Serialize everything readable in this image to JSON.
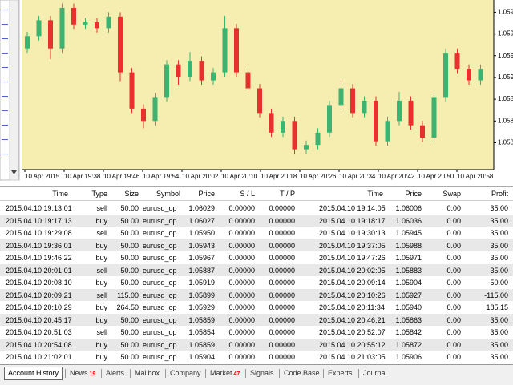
{
  "chart": {
    "type": "candlestick",
    "up_color": "#3cb371",
    "down_color": "#e8312f",
    "background": "#f5eeb0",
    "ylim": [
      1.05773,
      1.06007
    ],
    "yticks": [
      {
        "value": 1.0599,
        "label": "1.059"
      },
      {
        "value": 1.0596,
        "label": "1.059"
      },
      {
        "value": 1.0593,
        "label": "1.059"
      },
      {
        "value": 1.059,
        "label": "1.059"
      },
      {
        "value": 1.0587,
        "label": "1.058"
      },
      {
        "value": 1.0584,
        "label": "1.058"
      },
      {
        "value": 1.0581,
        "label": "1.058"
      }
    ],
    "time_labels": [
      "10 Apr 2015",
      "10 Apr 19:38",
      "10 Apr 19:46",
      "10 Apr 19:54",
      "10 Apr 20:02",
      "10 Apr 20:10",
      "10 Apr 20:18",
      "10 Apr 20:26",
      "10 Apr 20:34",
      "10 Apr 20:42",
      "10 Apr 20:50",
      "10 Apr 20:58"
    ],
    "open": [
      1.0594,
      1.05957,
      1.05979,
      1.0594,
      1.05996,
      1.05973,
      1.05976,
      1.05968,
      1.05984,
      1.05907,
      1.05857,
      1.0584,
      1.05873,
      1.05918,
      1.05901,
      1.05923,
      1.05896,
      1.05907,
      1.05968,
      1.05907,
      1.05885,
      1.05851,
      1.05824,
      1.0584,
      1.05801,
      1.05807,
      1.05824,
      1.05862,
      1.05885,
      1.05851,
      1.05868,
      1.05812,
      1.0584,
      1.05868,
      1.05834,
      1.05817,
      1.05873,
      1.05934,
      1.05912,
      1.05896
    ],
    "high": [
      1.05963,
      1.05985,
      1.05985,
      1.06002,
      1.06002,
      1.05982,
      1.05982,
      1.0599,
      1.0599,
      1.05913,
      1.05863,
      1.05879,
      1.05924,
      1.05924,
      1.05935,
      1.05929,
      1.05913,
      1.05985,
      1.05974,
      1.05913,
      1.05891,
      1.05857,
      1.05846,
      1.05846,
      1.05813,
      1.0583,
      1.05868,
      1.05896,
      1.05891,
      1.05874,
      1.05874,
      1.05846,
      1.0588,
      1.05874,
      1.0584,
      1.05879,
      1.0594,
      1.0594,
      1.05918,
      1.05918
    ],
    "low": [
      1.05934,
      1.05951,
      1.05925,
      1.05934,
      1.05967,
      1.05967,
      1.05962,
      1.05962,
      1.05895,
      1.05851,
      1.0583,
      1.05834,
      1.05867,
      1.0589,
      1.05895,
      1.0589,
      1.0589,
      1.05901,
      1.05901,
      1.05879,
      1.05845,
      1.05818,
      1.05818,
      1.05795,
      1.05795,
      1.05801,
      1.05818,
      1.05856,
      1.05845,
      1.05845,
      1.05806,
      1.05806,
      1.05834,
      1.05828,
      1.05811,
      1.05811,
      1.05867,
      1.05906,
      1.0589,
      1.0589
    ],
    "close": [
      1.05957,
      1.05979,
      1.0594,
      1.05996,
      1.05973,
      1.05976,
      1.05968,
      1.05984,
      1.05907,
      1.05857,
      1.0584,
      1.05873,
      1.05918,
      1.05901,
      1.05923,
      1.05896,
      1.05907,
      1.05968,
      1.05907,
      1.05885,
      1.05851,
      1.05824,
      1.0584,
      1.05801,
      1.05807,
      1.05824,
      1.05862,
      1.05885,
      1.05851,
      1.05868,
      1.05812,
      1.0584,
      1.05868,
      1.05834,
      1.05817,
      1.05873,
      1.05934,
      1.05912,
      1.05896,
      1.05912
    ]
  },
  "table": {
    "columns": [
      "Time",
      "Type",
      "Size",
      "Symbol",
      "Price",
      "S / L",
      "T / P",
      "Time",
      "Price",
      "Swap",
      "Profit"
    ],
    "rows": [
      [
        "2015.04.10 19:13:01",
        "sell",
        "50.00",
        "eurusd_op",
        "1.06029",
        "0.00000",
        "0.00000",
        "2015.04.10 19:14:05",
        "1.06006",
        "0.00",
        "35.00"
      ],
      [
        "2015.04.10 19:17:13",
        "buy",
        "50.00",
        "eurusd_op",
        "1.06027",
        "0.00000",
        "0.00000",
        "2015.04.10 19:18:17",
        "1.06036",
        "0.00",
        "35.00"
      ],
      [
        "2015.04.10 19:29:08",
        "sell",
        "50.00",
        "eurusd_op",
        "1.05950",
        "0.00000",
        "0.00000",
        "2015.04.10 19:30:13",
        "1.05945",
        "0.00",
        "35.00"
      ],
      [
        "2015.04.10 19:36:01",
        "buy",
        "50.00",
        "eurusd_op",
        "1.05943",
        "0.00000",
        "0.00000",
        "2015.04.10 19:37:05",
        "1.05988",
        "0.00",
        "35.00"
      ],
      [
        "2015.04.10 19:46:22",
        "buy",
        "50.00",
        "eurusd_op",
        "1.05967",
        "0.00000",
        "0.00000",
        "2015.04.10 19:47:26",
        "1.05971",
        "0.00",
        "35.00"
      ],
      [
        "2015.04.10 20:01:01",
        "sell",
        "50.00",
        "eurusd_op",
        "1.05887",
        "0.00000",
        "0.00000",
        "2015.04.10 20:02:05",
        "1.05883",
        "0.00",
        "35.00"
      ],
      [
        "2015.04.10 20:08:10",
        "buy",
        "50.00",
        "eurusd_op",
        "1.05919",
        "0.00000",
        "0.00000",
        "2015.04.10 20:09:14",
        "1.05904",
        "0.00",
        "-50.00"
      ],
      [
        "2015.04.10 20:09:21",
        "sell",
        "115.00",
        "eurusd_op",
        "1.05899",
        "0.00000",
        "0.00000",
        "2015.04.10 20:10:26",
        "1.05927",
        "0.00",
        "-115.00"
      ],
      [
        "2015.04.10 20:10:29",
        "buy",
        "264.50",
        "eurusd_op",
        "1.05929",
        "0.00000",
        "0.00000",
        "2015.04.10 20:11:34",
        "1.05940",
        "0.00",
        "185.15"
      ],
      [
        "2015.04.10 20:45:17",
        "buy",
        "50.00",
        "eurusd_op",
        "1.05859",
        "0.00000",
        "0.00000",
        "2015.04.10 20:46:21",
        "1.05863",
        "0.00",
        "35.00"
      ],
      [
        "2015.04.10 20:51:03",
        "sell",
        "50.00",
        "eurusd_op",
        "1.05854",
        "0.00000",
        "0.00000",
        "2015.04.10 20:52:07",
        "1.05842",
        "0.00",
        "35.00"
      ],
      [
        "2015.04.10 20:54:08",
        "buy",
        "50.00",
        "eurusd_op",
        "1.05859",
        "0.00000",
        "0.00000",
        "2015.04.10 20:55:12",
        "1.05872",
        "0.00",
        "35.00"
      ],
      [
        "2015.04.10 21:02:01",
        "buy",
        "50.00",
        "eurusd_op",
        "1.05904",
        "0.00000",
        "0.00000",
        "2015.04.10 21:03:05",
        "1.05906",
        "0.00",
        "35.00"
      ]
    ]
  },
  "tabs": [
    {
      "label": "Account History"
    },
    {
      "label": "News",
      "badge": "19"
    },
    {
      "label": "Alerts"
    },
    {
      "label": "Mailbox"
    },
    {
      "label": "Company"
    },
    {
      "label": "Market",
      "badge": "47"
    },
    {
      "label": "Signals"
    },
    {
      "label": "Code Base"
    },
    {
      "label": "Experts"
    },
    {
      "label": "Journal"
    }
  ]
}
